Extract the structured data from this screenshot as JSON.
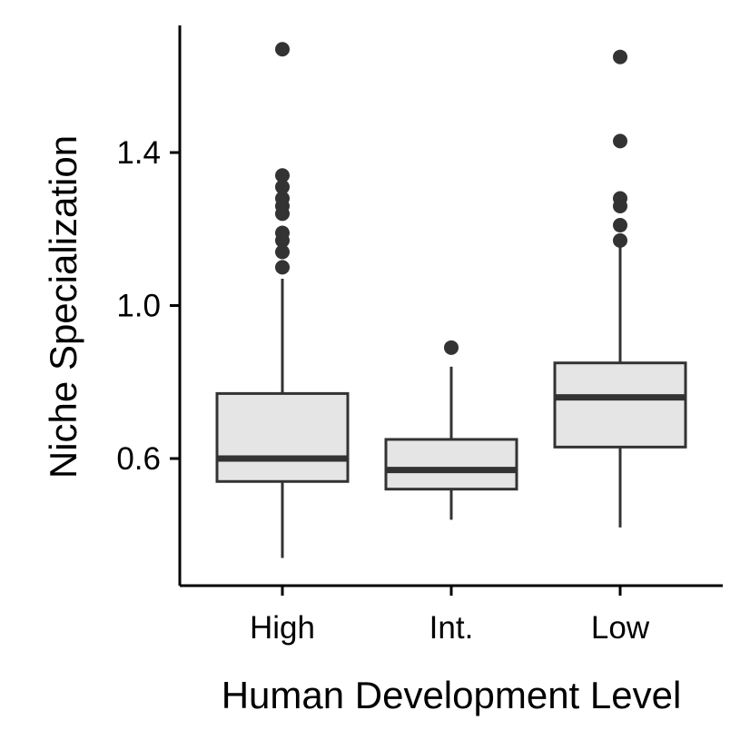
{
  "chart_data": {
    "type": "boxplot",
    "xlabel": "Human Development Level",
    "ylabel": "Niche Specialization",
    "categories": [
      "High",
      "Int.",
      "Low"
    ],
    "ylim": [
      0.27,
      1.72
    ],
    "yticks": [
      0.6,
      1.0,
      1.4
    ],
    "ytick_labels": [
      "0.6",
      "1.0",
      "1.4"
    ],
    "grid": false,
    "legend": "none",
    "box_fill": "#e5e5e5",
    "line_color": "#333333",
    "boxes": [
      {
        "category": "High",
        "whisker_low": 0.34,
        "q1": 0.54,
        "median": 0.6,
        "q3": 0.77,
        "whisker_high": 1.07,
        "outliers": [
          1.67,
          1.34,
          1.31,
          1.28,
          1.26,
          1.24,
          1.19,
          1.17,
          1.14,
          1.1
        ]
      },
      {
        "category": "Int.",
        "whisker_low": 0.44,
        "q1": 0.52,
        "median": 0.57,
        "q3": 0.65,
        "whisker_high": 0.84,
        "outliers": [
          0.89
        ]
      },
      {
        "category": "Low",
        "whisker_low": 0.42,
        "q1": 0.63,
        "median": 0.76,
        "q3": 0.85,
        "whisker_high": 1.16,
        "outliers": [
          1.65,
          1.43,
          1.28,
          1.26,
          1.21,
          1.17
        ]
      }
    ]
  }
}
